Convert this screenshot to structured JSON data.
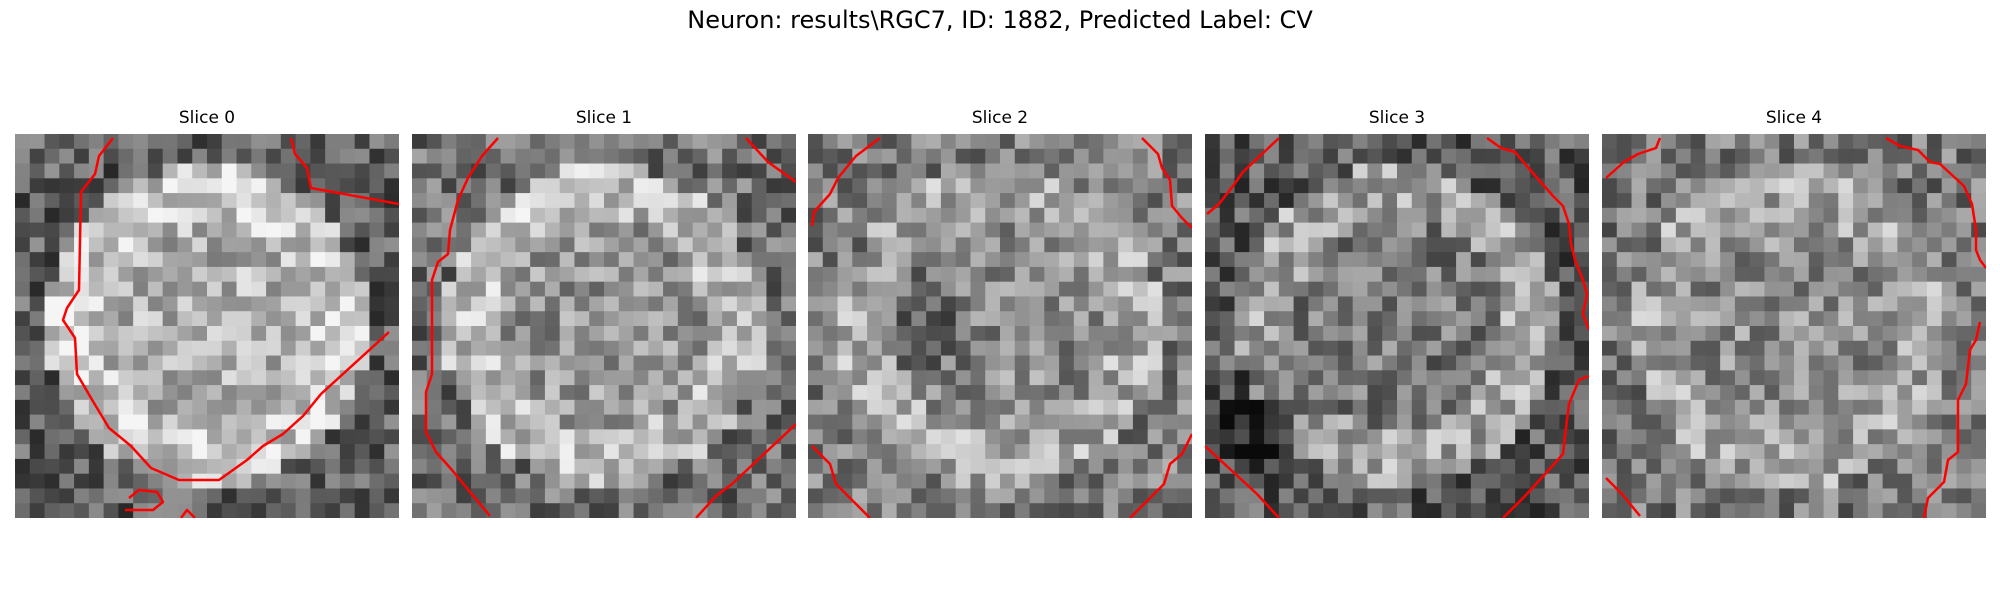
{
  "figure": {
    "title": "Neuron: results\\RGC7, ID: 1882, Predicted Label: CV"
  },
  "slices": [
    {
      "title": "Slice 0",
      "contour_color": "#ff0000"
    },
    {
      "title": "Slice 1",
      "contour_color": "#ff0000"
    },
    {
      "title": "Slice 2",
      "contour_color": "#ff0000"
    },
    {
      "title": "Slice 3",
      "contour_color": "#ff0000"
    },
    {
      "title": "Slice 4",
      "contour_color": "#ff0000"
    }
  ]
}
